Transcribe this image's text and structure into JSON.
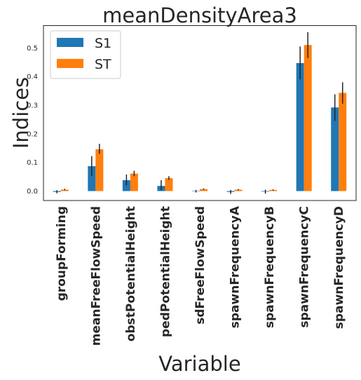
{
  "chart_data": {
    "type": "bar",
    "title": "meanDensityArea3",
    "xlabel": "Variable",
    "ylabel": "Indices",
    "categories": [
      "groupForming",
      "meanFreeFlowSpeed",
      "obstPotentialHeight",
      "pedPotentialHeight",
      "sdFreeFlowSpeed",
      "spawnFrequencyA",
      "spawnFrequencyB",
      "spawnFrequencyC",
      "spawnFrequencyD"
    ],
    "series": [
      {
        "name": "S1",
        "color": "#1f77b4",
        "values": [
          -0.003,
          0.087,
          0.038,
          0.018,
          -0.001,
          -0.003,
          -0.002,
          0.447,
          0.292
        ],
        "err_low": [
          -0.008,
          0.052,
          0.02,
          0.003,
          -0.005,
          -0.01,
          -0.009,
          0.39,
          0.245
        ],
        "err_high": [
          0.003,
          0.122,
          0.058,
          0.038,
          0.004,
          0.004,
          0.005,
          0.505,
          0.338
        ]
      },
      {
        "name": "ST",
        "color": "#ff7f0e",
        "values": [
          0.005,
          0.146,
          0.061,
          0.045,
          0.007,
          0.005,
          0.004,
          0.51,
          0.343
        ],
        "err_low": [
          0.003,
          0.13,
          0.052,
          0.039,
          0.005,
          0.003,
          0.002,
          0.465,
          0.305
        ],
        "err_high": [
          0.008,
          0.165,
          0.071,
          0.052,
          0.009,
          0.007,
          0.006,
          0.555,
          0.38
        ]
      }
    ],
    "ylim": [
      -0.033,
      0.578
    ],
    "yticks": [
      "0.0",
      "0.1",
      "0.2",
      "0.3",
      "0.4",
      "0.5"
    ],
    "grid": false,
    "legend_position": "upper-left"
  }
}
